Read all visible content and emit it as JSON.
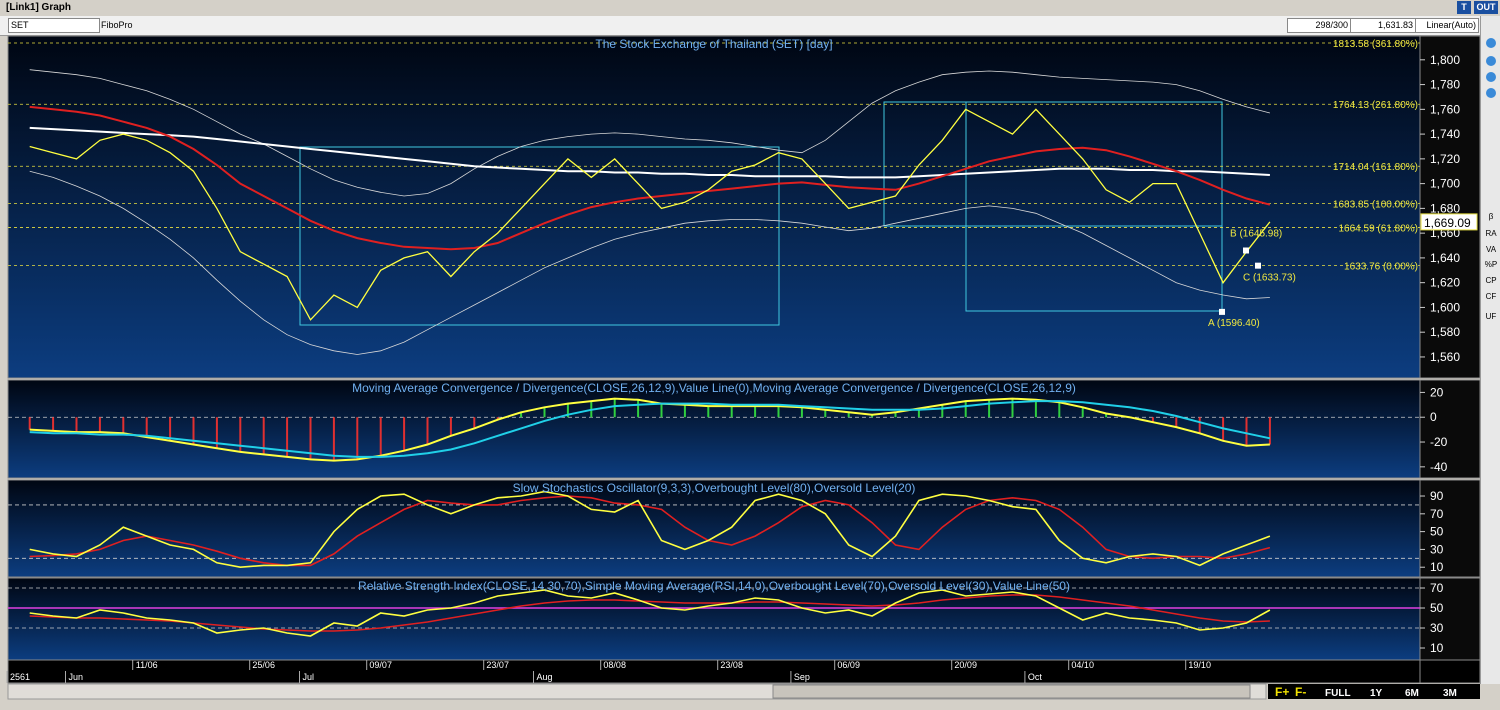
{
  "window": {
    "title": "[Link1] Graph",
    "symbol": "SET",
    "study": "FiboPro",
    "counter": "298/300",
    "last_value": "1,631.83",
    "scale": "Linear(Auto)",
    "buttons": [
      "T",
      "OUT"
    ]
  },
  "toolbar": [
    "β",
    "RA",
    "VA",
    "%P",
    "CP",
    "CF",
    "UF"
  ],
  "footer": {
    "buttons": [
      "F+",
      "F-",
      "FULL",
      "1Y",
      "6M",
      "3M"
    ]
  },
  "chart_data": [
    {
      "type": "line",
      "title": "The Stock Exchange of Thailand (SET) [day]",
      "categories": [
        null,
        null,
        null,
        null,
        null,
        "11/06",
        null,
        null,
        null,
        null,
        "25/06",
        null,
        null,
        null,
        null,
        "09/07",
        null,
        null,
        null,
        null,
        "23/07",
        null,
        null,
        null,
        null,
        "08/08",
        null,
        null,
        null,
        null,
        "23/08",
        null,
        null,
        null,
        null,
        "06/09",
        null,
        null,
        null,
        null,
        "20/09",
        null,
        null,
        null,
        null,
        "04/10",
        null,
        null,
        null,
        null,
        "19/10",
        null,
        null,
        null
      ],
      "months": [
        "2561",
        null,
        "Jun",
        null,
        null,
        null,
        null,
        null,
        null,
        null,
        null,
        null,
        "Jul",
        null,
        null,
        null,
        null,
        null,
        null,
        null,
        null,
        null,
        "Aug",
        null,
        null,
        null,
        null,
        null,
        null,
        null,
        null,
        null,
        null,
        "Sep",
        null,
        null,
        null,
        null,
        null,
        null,
        null,
        null,
        null,
        "Oct",
        null,
        null,
        null,
        null,
        null,
        null,
        null,
        null,
        null,
        null
      ],
      "ylim": [
        1543,
        1816
      ],
      "yticks": [
        {
          "value": 1560,
          "label": "1,560"
        },
        {
          "value": 1580,
          "label": "1,580"
        },
        {
          "value": 1600,
          "label": "1,600"
        },
        {
          "value": 1620,
          "label": "1,620"
        },
        {
          "value": 1640,
          "label": "1,640"
        },
        {
          "value": 1660,
          "label": "1,660"
        },
        {
          "value": 1680,
          "label": "1,680"
        },
        {
          "value": 1700,
          "label": "1,700"
        },
        {
          "value": 1720,
          "label": "1,720"
        },
        {
          "value": 1740,
          "label": "1,740"
        },
        {
          "value": 1760,
          "label": "1,760"
        },
        {
          "value": 1780,
          "label": "1,780"
        },
        {
          "value": 1800,
          "label": "1,800"
        }
      ],
      "series": [
        {
          "color": "#d8d8d8",
          "width": 0.8,
          "values": [
            1792,
            1790,
            1788,
            1785,
            1780,
            1775,
            1768,
            1760,
            1750,
            1740,
            1732,
            1722,
            1712,
            1703,
            1697,
            1693,
            1690,
            1692,
            1700,
            1712,
            1722,
            1730,
            1735,
            1738,
            1740,
            1741,
            1740,
            1738,
            1736,
            1735,
            1733,
            1730,
            1727,
            1725,
            1735,
            1750,
            1765,
            1775,
            1782,
            1788,
            1790,
            1791,
            1790,
            1788,
            1786,
            1785,
            1784,
            1783,
            1782,
            1780,
            1775,
            1768,
            1762,
            1757
          ]
        },
        {
          "color": "#d8d8d8",
          "width": 0.8,
          "values": [
            1710,
            1705,
            1698,
            1690,
            1680,
            1668,
            1655,
            1640,
            1622,
            1605,
            1590,
            1578,
            1570,
            1565,
            1562,
            1565,
            1572,
            1582,
            1592,
            1602,
            1612,
            1622,
            1632,
            1640,
            1648,
            1655,
            1660,
            1664,
            1668,
            1670,
            1671,
            1671,
            1670,
            1668,
            1665,
            1662,
            1664,
            1668,
            1672,
            1676,
            1680,
            1682,
            1680,
            1676,
            1668,
            1660,
            1650,
            1640,
            1630,
            1620,
            1614,
            1610,
            1607,
            1608
          ]
        },
        {
          "color": "#ffffff",
          "width": 2,
          "values": [
            1745,
            1744,
            1743,
            1742,
            1741,
            1740,
            1739,
            1738,
            1736,
            1734,
            1732,
            1730,
            1728,
            1726,
            1724,
            1722,
            1720,
            1718,
            1716,
            1714,
            1713,
            1712,
            1711,
            1710,
            1710,
            1709,
            1709,
            1708,
            1708,
            1707,
            1707,
            1706,
            1706,
            1706,
            1706,
            1705,
            1705,
            1705,
            1706,
            1707,
            1708,
            1709,
            1710,
            1711,
            1712,
            1712,
            1712,
            1711,
            1711,
            1710,
            1710,
            1709,
            1708,
            1707
          ]
        },
        {
          "color": "#e02020",
          "width": 2,
          "values": [
            1762,
            1760,
            1758,
            1755,
            1750,
            1745,
            1738,
            1728,
            1715,
            1700,
            1690,
            1680,
            1670,
            1662,
            1656,
            1652,
            1649,
            1648,
            1647,
            1648,
            1652,
            1660,
            1668,
            1675,
            1681,
            1685,
            1688,
            1690,
            1692,
            1694,
            1696,
            1698,
            1700,
            1701,
            1699,
            1697,
            1696,
            1695,
            1700,
            1706,
            1712,
            1718,
            1722,
            1726,
            1728,
            1729,
            1727,
            1722,
            1716,
            1710,
            1703,
            1695,
            1688,
            1683
          ]
        },
        {
          "color": "#ffff40",
          "width": 1.3,
          "values": [
            1730,
            1725,
            1720,
            1735,
            1740,
            1735,
            1725,
            1710,
            1680,
            1645,
            1635,
            1625,
            1590,
            1610,
            1600,
            1630,
            1640,
            1645,
            1625,
            1645,
            1660,
            1680,
            1700,
            1720,
            1705,
            1720,
            1700,
            1680,
            1685,
            1695,
            1710,
            1715,
            1725,
            1720,
            1700,
            1680,
            1685,
            1690,
            1715,
            1735,
            1760,
            1750,
            1740,
            1760,
            1740,
            1720,
            1695,
            1685,
            1700,
            1700,
            1660,
            1620,
            1645,
            1669.09
          ]
        }
      ],
      "fib_levels": [
        {
          "value": 1813.58,
          "label": "1813.58 (361.80%)"
        },
        {
          "value": 1764.13,
          "label": "1764.13 (261.80%)"
        },
        {
          "value": 1714.04,
          "label": "1714.04 (161.80%)"
        },
        {
          "value": 1683.85,
          "label": "1683.85 (100.00%)"
        },
        {
          "value": 1664.59,
          "label": "1664.59 (61.80%)"
        },
        {
          "value": 1633.76,
          "label": "1633.76 (0.00%)"
        }
      ],
      "points": [
        {
          "value": 1596.4,
          "label": "A (1596.40)"
        },
        {
          "value": 1645.98,
          "label": "B (1645.98)"
        },
        {
          "value": 1633.73,
          "label": "C (1633.73)"
        }
      ],
      "last": {
        "value": 1669.09,
        "label": "1,669.09"
      }
    },
    {
      "type": "line",
      "title": "Moving Average Convergence / Divergence(CLOSE,26,12,9),Value Line(0),Moving Average Convergence / Divergence(CLOSE,26,12,9)",
      "ylim": [
        -49,
        30
      ],
      "yticks": [
        -40,
        -20,
        0,
        20
      ],
      "levels": [
        {
          "value": 0,
          "color": "#cccccc"
        }
      ],
      "series": [
        {
          "color": "#ffff40",
          "width": 2,
          "bars": {
            "positive": "#30d040",
            "negative": "#e03030"
          },
          "values": [
            -10,
            -11,
            -12,
            -12,
            -13,
            -16,
            -19,
            -22,
            -25,
            -28,
            -30,
            -32,
            -34,
            -35,
            -34,
            -31,
            -27,
            -22,
            -15,
            -9,
            -2,
            4,
            8,
            11,
            13,
            15,
            14,
            11,
            10,
            9,
            9,
            9,
            9,
            8,
            6,
            4,
            2,
            4,
            7,
            10,
            13,
            14,
            15,
            14,
            12,
            8,
            3,
            0,
            -4,
            -8,
            -13,
            -19,
            -23,
            -22
          ]
        },
        {
          "color": "#20d0e8",
          "width": 2,
          "values": [
            -12,
            -13,
            -13,
            -14,
            -14,
            -15,
            -17,
            -19,
            -21,
            -23,
            -25,
            -27,
            -29,
            -31,
            -32,
            -32,
            -31,
            -29,
            -26,
            -21,
            -15,
            -9,
            -3,
            2,
            6,
            9,
            10,
            11,
            11,
            11,
            10,
            10,
            10,
            9,
            8,
            7,
            6,
            6,
            6,
            7,
            9,
            11,
            12,
            13,
            13,
            12,
            10,
            8,
            5,
            1,
            -4,
            -9,
            -13,
            -17
          ]
        }
      ]
    },
    {
      "type": "line",
      "title": "Slow Stochastics Oscillator(9,3,3),Overbought Level(80),Oversold Level(20)",
      "ylim": [
        -1,
        108
      ],
      "yticks": [
        10,
        30,
        50,
        70,
        90
      ],
      "levels": [
        {
          "value": 80,
          "color": "#cccccc"
        },
        {
          "value": 20,
          "color": "#cccccc"
        }
      ],
      "series": [
        {
          "color": "#e02020",
          "width": 1.6,
          "values": [
            22,
            23,
            25,
            30,
            40,
            45,
            40,
            35,
            28,
            20,
            15,
            12,
            12,
            25,
            45,
            60,
            75,
            85,
            82,
            80,
            80,
            85,
            88,
            90,
            88,
            82,
            80,
            75,
            55,
            40,
            35,
            45,
            60,
            78,
            85,
            80,
            60,
            35,
            30,
            55,
            75,
            85,
            88,
            85,
            75,
            55,
            30,
            22,
            20,
            22,
            22,
            20,
            25,
            32
          ]
        },
        {
          "color": "#ffff40",
          "width": 1.6,
          "values": [
            30,
            25,
            22,
            35,
            55,
            45,
            35,
            30,
            15,
            10,
            12,
            12,
            15,
            50,
            75,
            90,
            92,
            80,
            70,
            80,
            88,
            90,
            95,
            90,
            75,
            72,
            85,
            40,
            30,
            40,
            55,
            85,
            92,
            85,
            70,
            35,
            22,
            45,
            85,
            92,
            90,
            85,
            78,
            75,
            40,
            20,
            15,
            22,
            25,
            22,
            12,
            25,
            35,
            45
          ]
        }
      ]
    },
    {
      "type": "line",
      "title": "Relative Strength Index(CLOSE,14,30,70),Simple Moving Average(RSI,14,0),Overbought Level(70),Oversold Level(30),Value Line(50)",
      "ylim": [
        -2,
        80
      ],
      "yticks": [
        10,
        30,
        50,
        70
      ],
      "levels": [
        {
          "value": 70,
          "color": "#cccccc"
        },
        {
          "value": 30,
          "color": "#cccccc"
        },
        {
          "value": 50,
          "color": "#e040e0",
          "solid": true
        }
      ],
      "series": [
        {
          "color": "#e02020",
          "width": 1.6,
          "values": [
            42,
            41,
            40,
            40,
            39,
            38,
            37,
            35,
            33,
            31,
            29,
            28,
            27,
            27,
            28,
            30,
            33,
            36,
            40,
            44,
            48,
            52,
            55,
            57,
            58,
            58,
            57,
            56,
            55,
            55,
            55,
            56,
            56,
            55,
            54,
            53,
            52,
            53,
            55,
            58,
            60,
            62,
            63,
            63,
            61,
            58,
            55,
            52,
            48,
            44,
            40,
            37,
            36,
            37
          ]
        },
        {
          "color": "#ffff40",
          "width": 1.6,
          "values": [
            45,
            42,
            40,
            48,
            45,
            40,
            38,
            35,
            25,
            28,
            30,
            25,
            22,
            35,
            32,
            45,
            42,
            48,
            50,
            55,
            62,
            65,
            68,
            62,
            60,
            65,
            58,
            50,
            48,
            52,
            55,
            60,
            58,
            50,
            45,
            48,
            42,
            55,
            65,
            68,
            62,
            64,
            66,
            62,
            50,
            38,
            45,
            40,
            38,
            35,
            28,
            30,
            35,
            48
          ]
        }
      ]
    }
  ]
}
